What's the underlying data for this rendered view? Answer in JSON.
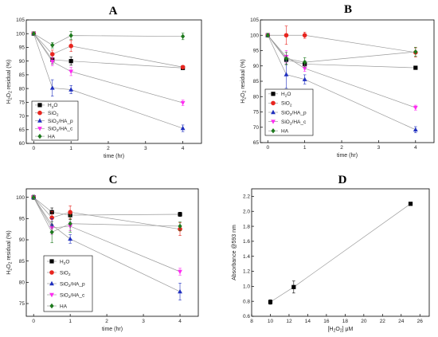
{
  "colors": {
    "H2O": "#000000",
    "SiO2": "#e8251f",
    "SiO2/HA_p": "#1f2fbf",
    "SiO2/HA_c": "#ff2bf2",
    "HA": "#1e7a1e",
    "line": "#9a9a9a",
    "axis": "#000000"
  },
  "chart_data": [
    {
      "id": "A",
      "type": "line",
      "title": "A",
      "xlabel": "time (hr)",
      "ylabel": {
        "main": "H",
        "sub": "2",
        "main2": "O",
        "sub2": "2",
        "rest": " residual (%)"
      },
      "xlim": [
        -0.2,
        4.5
      ],
      "ylim": [
        60,
        105
      ],
      "xticks": [
        "0",
        "1",
        "2",
        "3",
        "4"
      ],
      "yticks": [
        "60",
        "65",
        "70",
        "75",
        "80",
        "85",
        "90",
        "95",
        "100",
        "105"
      ],
      "x": [
        0,
        0.5,
        1,
        4
      ],
      "series": [
        {
          "name": "H2O",
          "label": {
            "base": "H",
            "sub": "2",
            "rest": "O"
          },
          "marker": "square",
          "values": [
            100,
            90.5,
            90,
            87.5
          ],
          "err": [
            0.5,
            1.5,
            1.5,
            0.6
          ]
        },
        {
          "name": "SiO2",
          "label": {
            "base": "SiO",
            "sub": "2",
            "rest": ""
          },
          "marker": "circle",
          "values": [
            100,
            92.5,
            95.5,
            87.8
          ],
          "err": [
            0.5,
            1.5,
            2.0,
            0.6
          ]
        },
        {
          "name": "SiO2/HA_p",
          "label": {
            "base": "SiO",
            "sub": "2",
            "rest": "/HA_p"
          },
          "marker": "triangle-up",
          "values": [
            100,
            80.2,
            79.6,
            65.5
          ],
          "err": [
            0.5,
            3.0,
            1.5,
            1.2
          ]
        },
        {
          "name": "SiO2/HA_c",
          "label": {
            "base": "SiO",
            "sub": "2",
            "rest": "/HA_c"
          },
          "marker": "triangle-down",
          "values": [
            100,
            89.8,
            86.2,
            74.8
          ],
          "err": [
            0.5,
            1.5,
            1.5,
            1.0
          ]
        },
        {
          "name": "HA",
          "label": {
            "base": "HA",
            "sub": "",
            "rest": ""
          },
          "marker": "diamond",
          "values": [
            100,
            95.8,
            99.3,
            99.0
          ],
          "err": [
            0.5,
            1.0,
            1.5,
            1.2
          ]
        }
      ]
    },
    {
      "id": "B",
      "type": "line",
      "title": "B",
      "xlabel": "time (hr)",
      "ylabel": {
        "main": "H",
        "sub": "2",
        "main2": "O",
        "sub2": "2",
        "rest": " residual (%)"
      },
      "xlim": [
        -0.2,
        4.5
      ],
      "ylim": [
        65,
        105
      ],
      "xticks": [
        "0",
        "1",
        "2",
        "3",
        "4"
      ],
      "yticks": [
        "65",
        "70",
        "75",
        "80",
        "85",
        "90",
        "95",
        "100",
        "105"
      ],
      "x": [
        0,
        0.5,
        1,
        4
      ],
      "series": [
        {
          "name": "H2O",
          "label": {
            "base": "H",
            "sub": "2",
            "rest": "O"
          },
          "marker": "square",
          "values": [
            100,
            92.0,
            90.6,
            89.4
          ],
          "err": [
            0.5,
            1.5,
            1.0,
            0.5
          ]
        },
        {
          "name": "SiO2",
          "label": {
            "base": "SiO",
            "sub": "2",
            "rest": ""
          },
          "marker": "circle",
          "values": [
            100,
            100,
            100,
            94.4
          ],
          "err": [
            0.5,
            3.0,
            1.0,
            1.5
          ]
        },
        {
          "name": "SiO2/HA_p",
          "label": {
            "base": "SiO",
            "sub": "2",
            "rest": "/HA_p"
          },
          "marker": "triangle-up",
          "values": [
            100,
            87.2,
            85.6,
            69.2
          ],
          "err": [
            0.5,
            4.5,
            1.5,
            1.0
          ]
        },
        {
          "name": "SiO2/HA_c",
          "label": {
            "base": "SiO",
            "sub": "2",
            "rest": "/HA_c"
          },
          "marker": "triangle-down",
          "values": [
            100,
            93.0,
            89.2,
            76.4
          ],
          "err": [
            0.5,
            2.0,
            1.0,
            0.8
          ]
        },
        {
          "name": "HA",
          "label": {
            "base": "HA",
            "sub": "",
            "rest": ""
          },
          "marker": "diamond",
          "values": [
            100,
            92.4,
            91.2,
            94.6
          ],
          "err": [
            0.5,
            2.0,
            1.5,
            1.5
          ]
        }
      ]
    },
    {
      "id": "C",
      "type": "line",
      "title": "C",
      "xlabel": "time (hr)",
      "ylabel": {
        "main": "H",
        "sub": "2",
        "main2": "O",
        "sub2": "2",
        "rest": " residual (%)"
      },
      "xlim": [
        -0.2,
        4.5
      ],
      "ylim": [
        72,
        102
      ],
      "xticks": [
        "0",
        "1",
        "2",
        "3",
        "4"
      ],
      "yticks": [
        "75",
        "80",
        "85",
        "90",
        "95",
        "100"
      ],
      "x": [
        0,
        0.5,
        1,
        4
      ],
      "series": [
        {
          "name": "H2O",
          "label": {
            "base": "H",
            "sub": "2",
            "rest": "O"
          },
          "marker": "square",
          "values": [
            100,
            96.5,
            95.8,
            96.0
          ],
          "err": [
            0.5,
            1.0,
            1.0,
            0.5
          ]
        },
        {
          "name": "SiO2",
          "label": {
            "base": "SiO",
            "sub": "2",
            "rest": ""
          },
          "marker": "circle",
          "values": [
            100,
            95.2,
            96.5,
            92.5
          ],
          "err": [
            0.5,
            1.5,
            1.5,
            1.5
          ]
        },
        {
          "name": "SiO2/HA_p",
          "label": {
            "base": "SiO",
            "sub": "2",
            "rest": "/HA_p"
          },
          "marker": "triangle-up",
          "values": [
            100,
            93.5,
            90.2,
            77.8
          ],
          "err": [
            0.5,
            1.5,
            1.0,
            2.0
          ]
        },
        {
          "name": "SiO2/HA_c",
          "label": {
            "base": "SiO",
            "sub": "2",
            "rest": "/HA_c"
          },
          "marker": "triangle-down",
          "values": [
            100,
            92.8,
            93.2,
            82.5
          ],
          "err": [
            0.5,
            1.5,
            1.0,
            0.8
          ]
        },
        {
          "name": "HA",
          "label": {
            "base": "HA",
            "sub": "",
            "rest": ""
          },
          "marker": "diamond",
          "values": [
            100,
            91.8,
            93.8,
            93.2
          ],
          "err": [
            0.5,
            2.5,
            2.0,
            1.0
          ]
        }
      ]
    },
    {
      "id": "D",
      "type": "line",
      "title": "D",
      "xlabel": {
        "main": "[H",
        "sub": "2",
        "main2": "O",
        "sub2": "2",
        "rest": "] μM"
      },
      "ylabel": "Absorbance @593 nm",
      "xlim": [
        8,
        27
      ],
      "ylim": [
        0.6,
        2.3
      ],
      "xticks": [
        "8",
        "10",
        "12",
        "14",
        "16",
        "18",
        "20",
        "22",
        "24",
        "26"
      ],
      "yticks": [
        "0.6",
        "0.8",
        "1.0",
        "1.2",
        "1.4",
        "1.6",
        "1.8",
        "2.0",
        "2.2"
      ],
      "series": [
        {
          "name": "absorbance",
          "marker": "square",
          "x": [
            10,
            12.5,
            25
          ],
          "values": [
            0.79,
            0.99,
            2.1
          ],
          "err": [
            0.03,
            0.08,
            0.01
          ]
        }
      ]
    }
  ]
}
